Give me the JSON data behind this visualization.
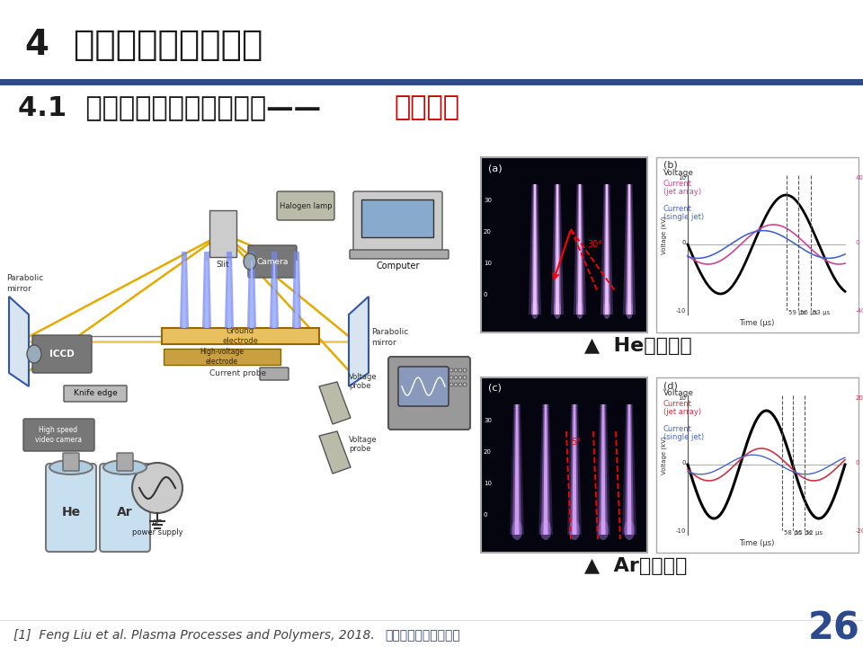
{
  "title": "4  射流阵列均匀性调控",
  "subtitle_black": "4.1  射流阵列均匀性影响因素——",
  "subtitle_red": "气体种类",
  "title_color": "#1a1a1a",
  "subtitle_color_black": "#1a1a1a",
  "subtitle_color_red": "#cc0000",
  "blue_bar_color": "#2c4a8c",
  "reference": "[1]  Feng Liu et al. Plasma Processes and Polymers, 2018.",
  "center_text": "《电工技术学报》发布",
  "page_number": "26",
  "he_label": "▲  He射流阵列",
  "ar_label": "▲  Ar射流阵列",
  "label_color": "#1a1a1a",
  "title_fontsize": 28,
  "subtitle_fontsize": 22,
  "ref_fontsize": 10,
  "page_fontsize": 30,
  "label_fontsize": 16
}
